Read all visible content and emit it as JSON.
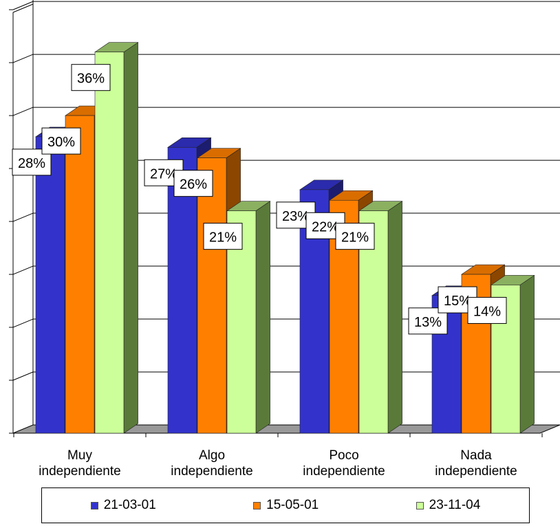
{
  "chart_data": {
    "type": "bar",
    "categories": [
      [
        "Muy",
        "independiente"
      ],
      [
        "Algo",
        "independiente"
      ],
      [
        "Poco",
        "independiente"
      ],
      [
        "Nada",
        "independiente"
      ]
    ],
    "series": [
      {
        "name": "21-03-01",
        "values": [
          28,
          27,
          23,
          13
        ],
        "labels": [
          "28%",
          "27%",
          "23%",
          "13%"
        ],
        "color": "#3333cc"
      },
      {
        "name": "15-05-01",
        "values": [
          30,
          26,
          22,
          15
        ],
        "labels": [
          "30%",
          "26%",
          "22%",
          "15%"
        ],
        "color": "#ff8000"
      },
      {
        "name": "23-11-04",
        "values": [
          36,
          21,
          21,
          14
        ],
        "labels": [
          "36%",
          "21%",
          "21%",
          "14%"
        ],
        "color": "#ccff99"
      }
    ],
    "ylim": [
      0,
      40
    ],
    "grid": true,
    "style": "3d",
    "legend_position": "bottom"
  }
}
